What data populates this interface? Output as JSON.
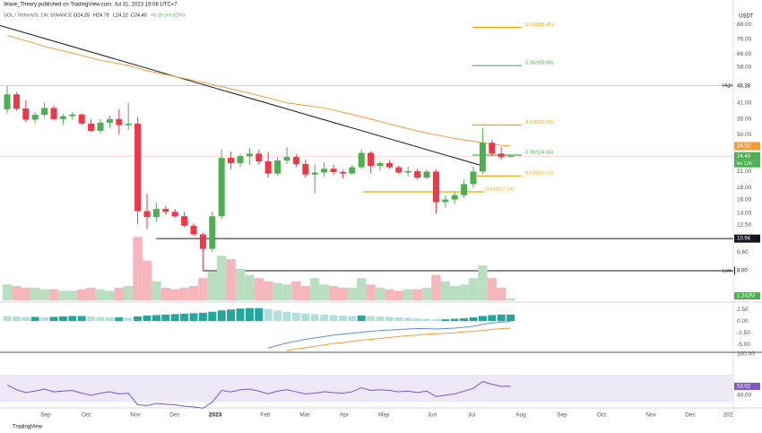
{
  "header": {
    "publisher": "Wave_Theory published on TradingView.com, Jul 31, 2023 19:08 UTC+7",
    "symbol": "SOL / TetherUS, 1W, BINANCE",
    "open": "O24.25",
    "high": "H24.79",
    "low": "L24.12",
    "close": "C24.40",
    "change": "+0.15 (+0.62%)"
  },
  "footer": "TradingView",
  "chart_data": {
    "type": "candlestick",
    "currency": "USDT",
    "log_scale": true,
    "x": [
      null,
      null,
      null,
      null,
      null,
      null,
      null,
      null,
      null,
      null,
      null,
      null,
      null,
      null,
      null,
      null,
      null,
      null,
      null,
      null,
      null,
      null,
      null,
      null,
      null,
      null,
      null,
      null,
      null,
      null,
      null,
      null,
      null,
      null,
      null,
      null,
      null,
      null,
      null,
      null,
      null,
      null,
      null,
      null,
      null,
      null,
      null,
      null,
      null,
      null,
      null,
      null,
      null,
      null,
      null
    ],
    "open": [
      38.5,
      44.5,
      38.8,
      34.8,
      36.5,
      39.0,
      35.0,
      36.0,
      36.6,
      33.5,
      31.2,
      33.8,
      35.0,
      33.0,
      33.5,
      14.3,
      13.5,
      14.6,
      14.2,
      13.6,
      12.4,
      11.4,
      9.9,
      13.6,
      24.0,
      22.8,
      24.4,
      25.0,
      23.2,
      20.6,
      23.4,
      24.2,
      22.6,
      20.4,
      20.8,
      21.6,
      20.9,
      20.6,
      21.9,
      25.2,
      22.2,
      22.8,
      21.9,
      20.8,
      21.1,
      19.8,
      21.0,
      15.6,
      16.0,
      16.7,
      18.6,
      21.0,
      27.8,
      25.0,
      24.25
    ],
    "high": [
      48.38,
      45.5,
      42,
      37.5,
      41,
      40,
      36.8,
      37.5,
      37,
      35,
      35,
      36.2,
      38.5,
      41,
      35.6,
      16.9,
      15.5,
      15.0,
      14.6,
      14.2,
      12.7,
      11.6,
      14.2,
      26.0,
      25.5,
      25.0,
      26.4,
      26.0,
      25.5,
      24.2,
      26.6,
      24.8,
      23.5,
      22.5,
      23.0,
      22.5,
      21.4,
      22.4,
      26.0,
      25.6,
      23.2,
      23.5,
      22.3,
      22.0,
      21.6,
      21.4,
      21.5,
      16.7,
      17.2,
      19.5,
      22.0,
      32.0,
      28.6,
      26.6,
      24.79
    ],
    "low": [
      37,
      38,
      34.0,
      33.5,
      35.5,
      34.5,
      33.0,
      34.8,
      33.0,
      30.8,
      30.5,
      32,
      30.2,
      31.5,
      12.6,
      12.0,
      12.9,
      13.8,
      13.4,
      12.2,
      11.2,
      8.0,
      9.6,
      13.2,
      21.5,
      22.0,
      22.5,
      22.5,
      19.8,
      20.2,
      22.6,
      22.0,
      19.8,
      17.0,
      20.0,
      20.3,
      19.7,
      20.4,
      21.5,
      20.7,
      21.2,
      21.6,
      20.5,
      20.0,
      19.4,
      19.5,
      14.0,
      14.8,
      15.3,
      16.2,
      17.9,
      20.5,
      24.5,
      23.6,
      24.12
    ],
    "close": [
      44.5,
      38.8,
      34.8,
      36.5,
      39.0,
      35.0,
      36.0,
      36.6,
      33.5,
      31.2,
      33.8,
      35.0,
      33.0,
      33.5,
      14.3,
      13.5,
      14.6,
      14.2,
      13.6,
      12.4,
      11.4,
      9.9,
      13.6,
      24.0,
      22.8,
      24.4,
      25.0,
      23.2,
      20.6,
      23.4,
      24.2,
      22.6,
      20.4,
      20.8,
      21.6,
      20.9,
      20.6,
      21.9,
      25.2,
      22.2,
      22.8,
      21.9,
      20.8,
      21.1,
      19.8,
      21.0,
      15.6,
      16.0,
      16.7,
      18.6,
      21.0,
      27.8,
      25.0,
      24.25,
      24.4
    ],
    "up_color": "#4caf50",
    "down_color": "#f23645",
    "ma": {
      "color": "#f59b3a",
      "values": [
        79,
        77,
        75,
        73,
        71,
        69.5,
        68,
        66.5,
        65,
        63.5,
        62,
        61,
        60,
        59,
        57.5,
        56,
        55,
        54,
        53,
        52,
        51,
        50,
        49,
        48,
        47,
        46,
        45,
        44,
        43,
        42,
        41,
        40.5,
        40,
        39.5,
        39,
        38.2,
        37.4,
        36.6,
        35.8,
        35,
        34.2,
        33.4,
        32.6,
        31.9,
        31.2,
        30.6,
        30,
        29.5,
        29,
        28.6,
        28.2,
        27.8,
        27.4,
        27.1,
        26.92
      ]
    },
    "trendline": [
      87,
      22.2
    ],
    "ylim": [
      6.0,
      104
    ],
    "yticks": [
      {
        "value": 88,
        "label": "88.00"
      },
      {
        "value": 76,
        "label": "76.00"
      },
      {
        "value": 66,
        "label": "66.00"
      },
      {
        "value": 58,
        "label": "58.00"
      },
      {
        "value": 41,
        "label": "41.00"
      },
      {
        "value": 35,
        "label": "35.00"
      },
      {
        "value": 30,
        "label": "30.00"
      },
      {
        "value": 21,
        "label": "21.00"
      },
      {
        "value": 18,
        "label": "18.00"
      },
      {
        "value": 16,
        "label": "16.00"
      },
      {
        "value": 14,
        "label": "14.00"
      },
      {
        "value": 12.5,
        "label": "12.50"
      },
      {
        "value": 9.6,
        "label": "9.60"
      }
    ],
    "price_labels": [
      {
        "value": 48.38,
        "label": "48.38",
        "tag": "High",
        "color": "#ffffff",
        "text_color": "#131722"
      },
      {
        "value": 26.92,
        "label": "26.92",
        "color": "#f59b3a",
        "text_color": "#ffffff"
      },
      {
        "value": 24.4,
        "label": "24.40",
        "color": "#4caf50",
        "text_color": "#ffffff",
        "sub": "6d 12h"
      },
      {
        "value": 10.94,
        "label": "10.94",
        "color": "#131722",
        "text_color": "#ffffff"
      },
      {
        "value": 8.0,
        "label": "8.00",
        "color": "#131722",
        "text_color": "#ffffff"
      },
      {
        "value": 8.0,
        "label": "8.00",
        "tag": "Low",
        "color": "#ffffff",
        "text_color": "#131722"
      }
    ],
    "levels": [
      {
        "value": 85.45,
        "label": "0.618(85.45)",
        "color": "#f0a800"
      },
      {
        "value": 58.89,
        "label": "0.382(58.89)",
        "color": "#4caf50"
      },
      {
        "value": 33.06,
        "label": "0.618(33.06)",
        "color": "#f0a800"
      },
      {
        "value": 24.65,
        "label": "0.382(24.65)",
        "color": "#4caf50"
      },
      {
        "value": 20.13,
        "label": "0.618(20.13)",
        "color": "#f0a800"
      },
      {
        "value": 17.24,
        "label": "0.618(17.24)",
        "color": "#f0a800"
      }
    ],
    "hlines": [
      {
        "value": 10.94,
        "from": 16
      },
      {
        "value": 8.0,
        "from": 21
      }
    ],
    "time_labels": [
      "Sep",
      "Oct",
      "Nov",
      "Dec",
      "2023",
      "Feb",
      "Mar",
      "Apr",
      "May",
      "Jun",
      "Jul",
      "Aug",
      "Sep",
      "Oct",
      "Nov",
      "Dec",
      "202"
    ],
    "volume": {
      "values": [
        10,
        9,
        8,
        8,
        7,
        7,
        6,
        6,
        7,
        8,
        7,
        6,
        8,
        9,
        40,
        25,
        12,
        8,
        7,
        8,
        9,
        14,
        18,
        28,
        26,
        20,
        16,
        14,
        12,
        11,
        10,
        12,
        9,
        14,
        10,
        9,
        8,
        8,
        14,
        10,
        8,
        7,
        6,
        7,
        7,
        8,
        16,
        12,
        9,
        10,
        14,
        22,
        14,
        8,
        1.242
      ],
      "last_label": "1.242M",
      "ylim": [
        0,
        48
      ],
      "up_color": "#b9dfc1",
      "down_color": "#f7b6bc"
    },
    "macd": {
      "hist": [
        1.1,
        1.0,
        0.9,
        0.9,
        0.8,
        0.9,
        1.0,
        1.1,
        1.1,
        1.0,
        0.9,
        0.8,
        0.8,
        0.7,
        1.0,
        1.2,
        1.3,
        1.4,
        1.5,
        1.6,
        1.7,
        1.8,
        2.0,
        2.3,
        2.5,
        2.7,
        2.8,
        2.8,
        2.6,
        2.3,
        2.0,
        1.8,
        1.6,
        1.5,
        1.4,
        1.3,
        1.2,
        1.1,
        1.2,
        1.1,
        1.0,
        0.9,
        0.8,
        0.7,
        0.6,
        0.5,
        0.4,
        0.4,
        0.5,
        0.6,
        0.8,
        1.1,
        1.3,
        1.4,
        1.4
      ],
      "macd": [
        null,
        null,
        null,
        null,
        null,
        null,
        null,
        null,
        null,
        null,
        null,
        null,
        null,
        null,
        null,
        null,
        null,
        null,
        null,
        null,
        null,
        null,
        null,
        null,
        null,
        null,
        null,
        null,
        -5.8,
        -5.2,
        -4.7,
        -4.3,
        -3.9,
        -3.6,
        -3.3,
        -3.0,
        -2.8,
        -2.6,
        -2.4,
        -2.2,
        -2.0,
        -1.9,
        -1.8,
        -1.7,
        -1.6,
        -1.6,
        -1.7,
        -1.6,
        -1.5,
        -1.3,
        -1.1,
        -0.7,
        -0.4,
        -0.2,
        -0.1
      ],
      "signal": [
        null,
        null,
        null,
        null,
        null,
        null,
        null,
        null,
        null,
        null,
        null,
        null,
        null,
        null,
        null,
        null,
        null,
        null,
        null,
        null,
        null,
        null,
        null,
        null,
        null,
        null,
        null,
        null,
        null,
        null,
        -6.3,
        -6.0,
        -5.7,
        -5.4,
        -5.1,
        -4.8,
        -4.6,
        -4.3,
        -4.1,
        -3.9,
        -3.7,
        -3.5,
        -3.3,
        -3.1,
        -3.0,
        -2.8,
        -2.7,
        -2.6,
        -2.5,
        -2.3,
        -2.2,
        -2.0,
        -1.8,
        -1.6,
        -1.5
      ],
      "ylim": [
        -6.5,
        3.5
      ],
      "yticks": [
        {
          "value": 2.5,
          "label": "2.50"
        },
        {
          "value": 0,
          "label": "0.00"
        },
        {
          "value": -2.5,
          "label": "-2.50"
        },
        {
          "value": -5,
          "label": "-5.00"
        }
      ],
      "dark": "#26a69a",
      "light": "#b2dfdb",
      "macd_color": "#5b8def",
      "signal_color": "#f59b3a"
    },
    "rsi": {
      "values": [
        55,
        48,
        44,
        46,
        49,
        45,
        46,
        47,
        43,
        40,
        43,
        45,
        42,
        43,
        26,
        25,
        28,
        27,
        26,
        24,
        23,
        21,
        30,
        47,
        45,
        48,
        49,
        46,
        42,
        46,
        48,
        45,
        42,
        43,
        45,
        44,
        43,
        45,
        51,
        47,
        48,
        47,
        45,
        46,
        44,
        46,
        38,
        40,
        42,
        46,
        50,
        60,
        56,
        53,
        53.02
      ],
      "last_label": "53.02",
      "ylim": [
        15,
        100
      ],
      "band": [
        30,
        70
      ],
      "yticks": [
        {
          "value": 100,
          "label": "100.00"
        },
        {
          "value": 40,
          "label": "40.00"
        }
      ],
      "color": "#7e57c2"
    }
  }
}
